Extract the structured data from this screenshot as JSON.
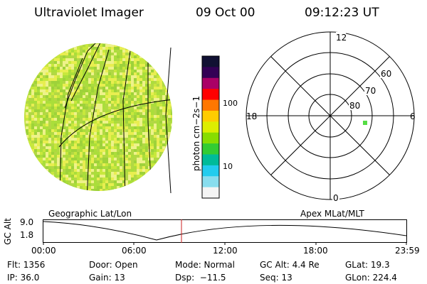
{
  "header": {
    "instrument": "Ultraviolet Imager",
    "date": "09 Oct 00",
    "time": "09:12:23 UT"
  },
  "colorbar": {
    "label": "photon cm−2s−1",
    "ticks": [
      "100",
      "10"
    ],
    "scale": "log",
    "colors": [
      "#111133",
      "#330055",
      "#aa0066",
      "#ff0000",
      "#ff7700",
      "#ffcc00",
      "#ddee00",
      "#88dd00",
      "#33cc33",
      "#00bb99",
      "#22ccee",
      "#88ddee",
      "#f4f4f4"
    ]
  },
  "disk_image": {
    "name": "uv-earth-disk",
    "palette": [
      "#aade3a",
      "#c8e83c",
      "#e8ee50",
      "#b2d844",
      "#eef28a",
      "#9ed23a"
    ]
  },
  "polar_plot": {
    "labels": {
      "top": "12",
      "bottom": "0",
      "left": "18",
      "right": "6"
    },
    "ring_labels": [
      "60",
      "70",
      "80"
    ],
    "marker_color": "#55dd44"
  },
  "timeline": {
    "ylabel": "GC Alt",
    "yticks": [
      "9.0",
      "1.8"
    ],
    "left_title": "Geographic Lat/Lon",
    "right_title": "Apex MLat/MLT",
    "xticks": [
      "00:00",
      "06:00",
      "12:00",
      "18:00",
      "23:59"
    ],
    "cursor_color": "#cc2222"
  },
  "status": {
    "flt": "Flt: 1356",
    "door": "Door: Open",
    "mode": "Mode: Normal",
    "gc_alt": "GC Alt: 4.4 Re",
    "glat": "GLat: 19.3",
    "ip": "IP: 36.0",
    "gain": "Gain: 13",
    "dsp": "Dsp:  −11.5",
    "seq": "Seq: 13",
    "glon": "GLon: 224.4"
  }
}
